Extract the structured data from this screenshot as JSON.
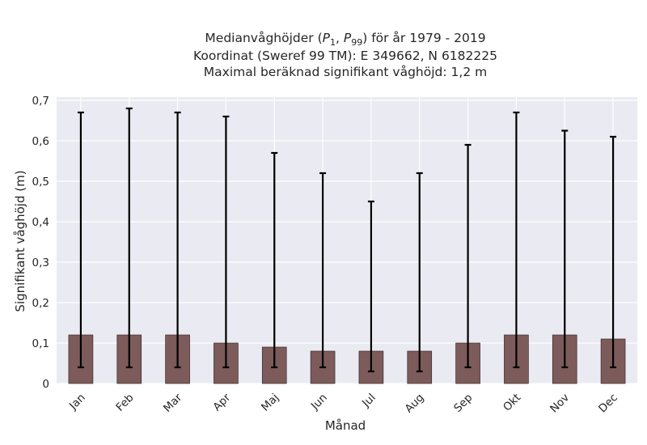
{
  "chart_data": {
    "type": "bar",
    "title_lines": [
      "Medianvåghöjder (P1, P99) för år 1979 - 2019",
      "Koordinat (Sweref 99 TM): E 349662, N 6182225",
      "Maximal beräknad signifikant våghöjd: 1,2 m"
    ],
    "xlabel": "Månad",
    "ylabel": "Signifikant våghöjd (m)",
    "categories": [
      "Jan",
      "Feb",
      "Mar",
      "Apr",
      "Maj",
      "Jun",
      "Jul",
      "Aug",
      "Sep",
      "Okt",
      "Nov",
      "Dec"
    ],
    "series": [
      {
        "values": [
          0.12,
          0.12,
          0.12,
          0.1,
          0.09,
          0.08,
          0.08,
          0.08,
          0.1,
          0.12,
          0.12,
          0.11
        ],
        "p1": [
          0.04,
          0.04,
          0.04,
          0.04,
          0.04,
          0.04,
          0.03,
          0.03,
          0.04,
          0.04,
          0.04,
          0.04
        ],
        "p99": [
          0.67,
          0.68,
          0.67,
          0.66,
          0.57,
          0.52,
          0.45,
          0.52,
          0.59,
          0.67,
          0.625,
          0.61
        ]
      }
    ],
    "ylim": [
      0,
      0.7
    ],
    "yticks": [
      0,
      0.1,
      0.2,
      0.3,
      0.4,
      0.5,
      0.6,
      0.7
    ],
    "ytick_labels": [
      "0",
      "0,1",
      "0,2",
      "0,3",
      "0,4",
      "0,5",
      "0,6",
      "0,7"
    ],
    "grid": true,
    "colors": {
      "bar": "#7d5b5b",
      "bar_edge": "#3a2a2a",
      "errorbar": "#000000",
      "plot_background": "#eaeaf2",
      "grid": "#ffffff"
    }
  }
}
